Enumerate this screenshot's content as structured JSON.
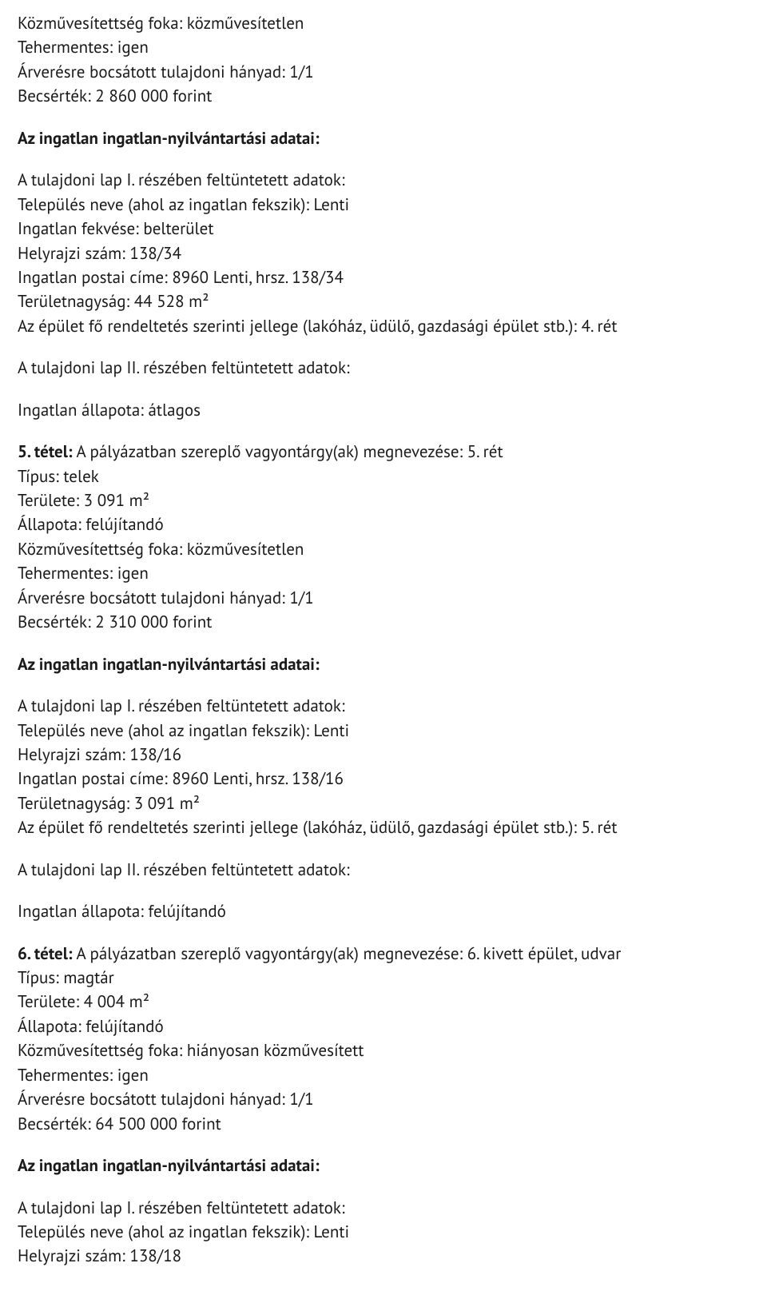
{
  "meta": {
    "font_family": "PT Sans, Noto Sans, Segoe UI, Arial, sans-serif",
    "font_size_pt": 16,
    "text_color": "#1a1a1a",
    "background_color": "#ffffff",
    "bold_weight": 700
  },
  "labels": {
    "kozmu_foka": "Közművesítettség foka:",
    "tehermentes": "Tehermentes:",
    "arveres_hanyad": "Árverésre bocsátott tulajdoni hányad:",
    "becsertek": "Becsérték:",
    "ingatlan_nyilv_heading": "Az ingatlan ingatlan-nyilvántartási adatai:",
    "lap_I_heading": "A tulajdoni lap I. részében feltüntetett adatok:",
    "telepules": "Település neve (ahol az ingatlan fekszik):",
    "fekves": "Ingatlan fekvése:",
    "hrsz": "Helyrajzi szám:",
    "postai_cim": "Ingatlan postai címe:",
    "teruletnagysag": "Területnagyság:",
    "epulet_jelleg": "Az épület fő rendeltetés szerinti jellege (lakóház, üdülő, gazdasági épület stb.):",
    "lap_II_heading": "A tulajdoni lap II. részében feltüntetett adatok:",
    "allapot_line": "Ingatlan állapota:",
    "tipus": "Típus:",
    "terulete": "Területe:",
    "allapota": "Állapota:"
  },
  "block1": {
    "kozmu_foka": "közművesítetlen",
    "tehermentes": "igen",
    "arveres_hanyad": "1/1",
    "becsertek": "2 860 000 forint"
  },
  "lapI_1": {
    "telepules": "Lenti",
    "fekves": "belterület",
    "hrsz": "138/34",
    "postai_cim": "8960 Lenti, hrsz. 138/34",
    "teruletnagysag": "44 528 m²",
    "epulet_jelleg": "4. rét"
  },
  "allapot1": "átlagos",
  "tetel5": {
    "title_bold": "5. tétel:",
    "title_rest": "A pályázatban szereplő vagyontárgy(ak) megnevezése: 5. rét",
    "tipus": "telek",
    "terulete": "3 091 m²",
    "allapota": "felújítandó",
    "kozmu_foka": "közművesítetlen",
    "tehermentes": "igen",
    "arveres_hanyad": "1/1",
    "becsertek": "2 310 000 forint"
  },
  "lapI_2": {
    "telepules": "Lenti",
    "hrsz": "138/16",
    "postai_cim": "8960 Lenti, hrsz. 138/16",
    "teruletnagysag": "3 091 m²",
    "epulet_jelleg": "5. rét"
  },
  "allapot2": "felújítandó",
  "tetel6": {
    "title_bold": "6. tétel:",
    "title_rest": "A pályázatban szereplő vagyontárgy(ak) megnevezése: 6. kivett épület, udvar",
    "tipus": "magtár",
    "terulete": "4 004 m²",
    "allapota": "felújítandó",
    "kozmu_foka": "hiányosan közművesített",
    "tehermentes": "igen",
    "arveres_hanyad": "1/1",
    "becsertek": "64 500 000 forint"
  },
  "lapI_3": {
    "telepules": "Lenti",
    "hrsz": "138/18"
  }
}
